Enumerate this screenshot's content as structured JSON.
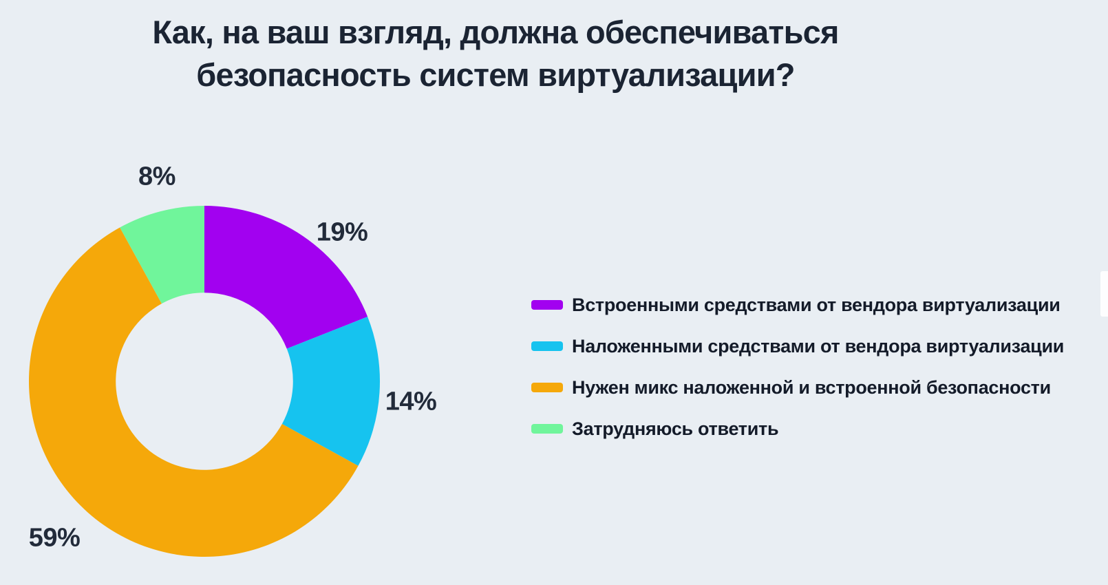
{
  "title": {
    "full": "Как, на ваш взгляд, должна обеспечиваться безопасность систем виртуализации?",
    "line1": "Как, на ваш взгляд, должна обеспечиваться",
    "line2": "безопасность систем виртуализации?"
  },
  "chart_data": {
    "type": "pie",
    "subtype": "donut",
    "title": "Как, на ваш взгляд, должна обеспечиваться безопасность систем виртуализации?",
    "unit": "%",
    "categories": [
      "Встроенными средствами от вендора виртуализации",
      "Наложенными средствами от вендора виртуализации",
      "Нужен микс наложенной и встроенной безопасности",
      "Затрудняюсь ответить"
    ],
    "values": [
      19,
      14,
      59,
      8
    ],
    "labels": [
      "19%",
      "14%",
      "59%",
      "8%"
    ],
    "colors": [
      "#A201F0",
      "#16C3EF",
      "#F5A80A",
      "#70F59B"
    ],
    "start_angle_deg": 0,
    "direction": "clockwise",
    "donut_hole_ratio": 0.505,
    "legend_position": "right",
    "value_labels": "outside"
  },
  "legend": {
    "swatch_name": "legend-swatch"
  },
  "colors": {
    "background": "#E9EEF3",
    "title_text": "#1B2433",
    "label_text": "#222B3A",
    "legend_text": "#141B29"
  }
}
